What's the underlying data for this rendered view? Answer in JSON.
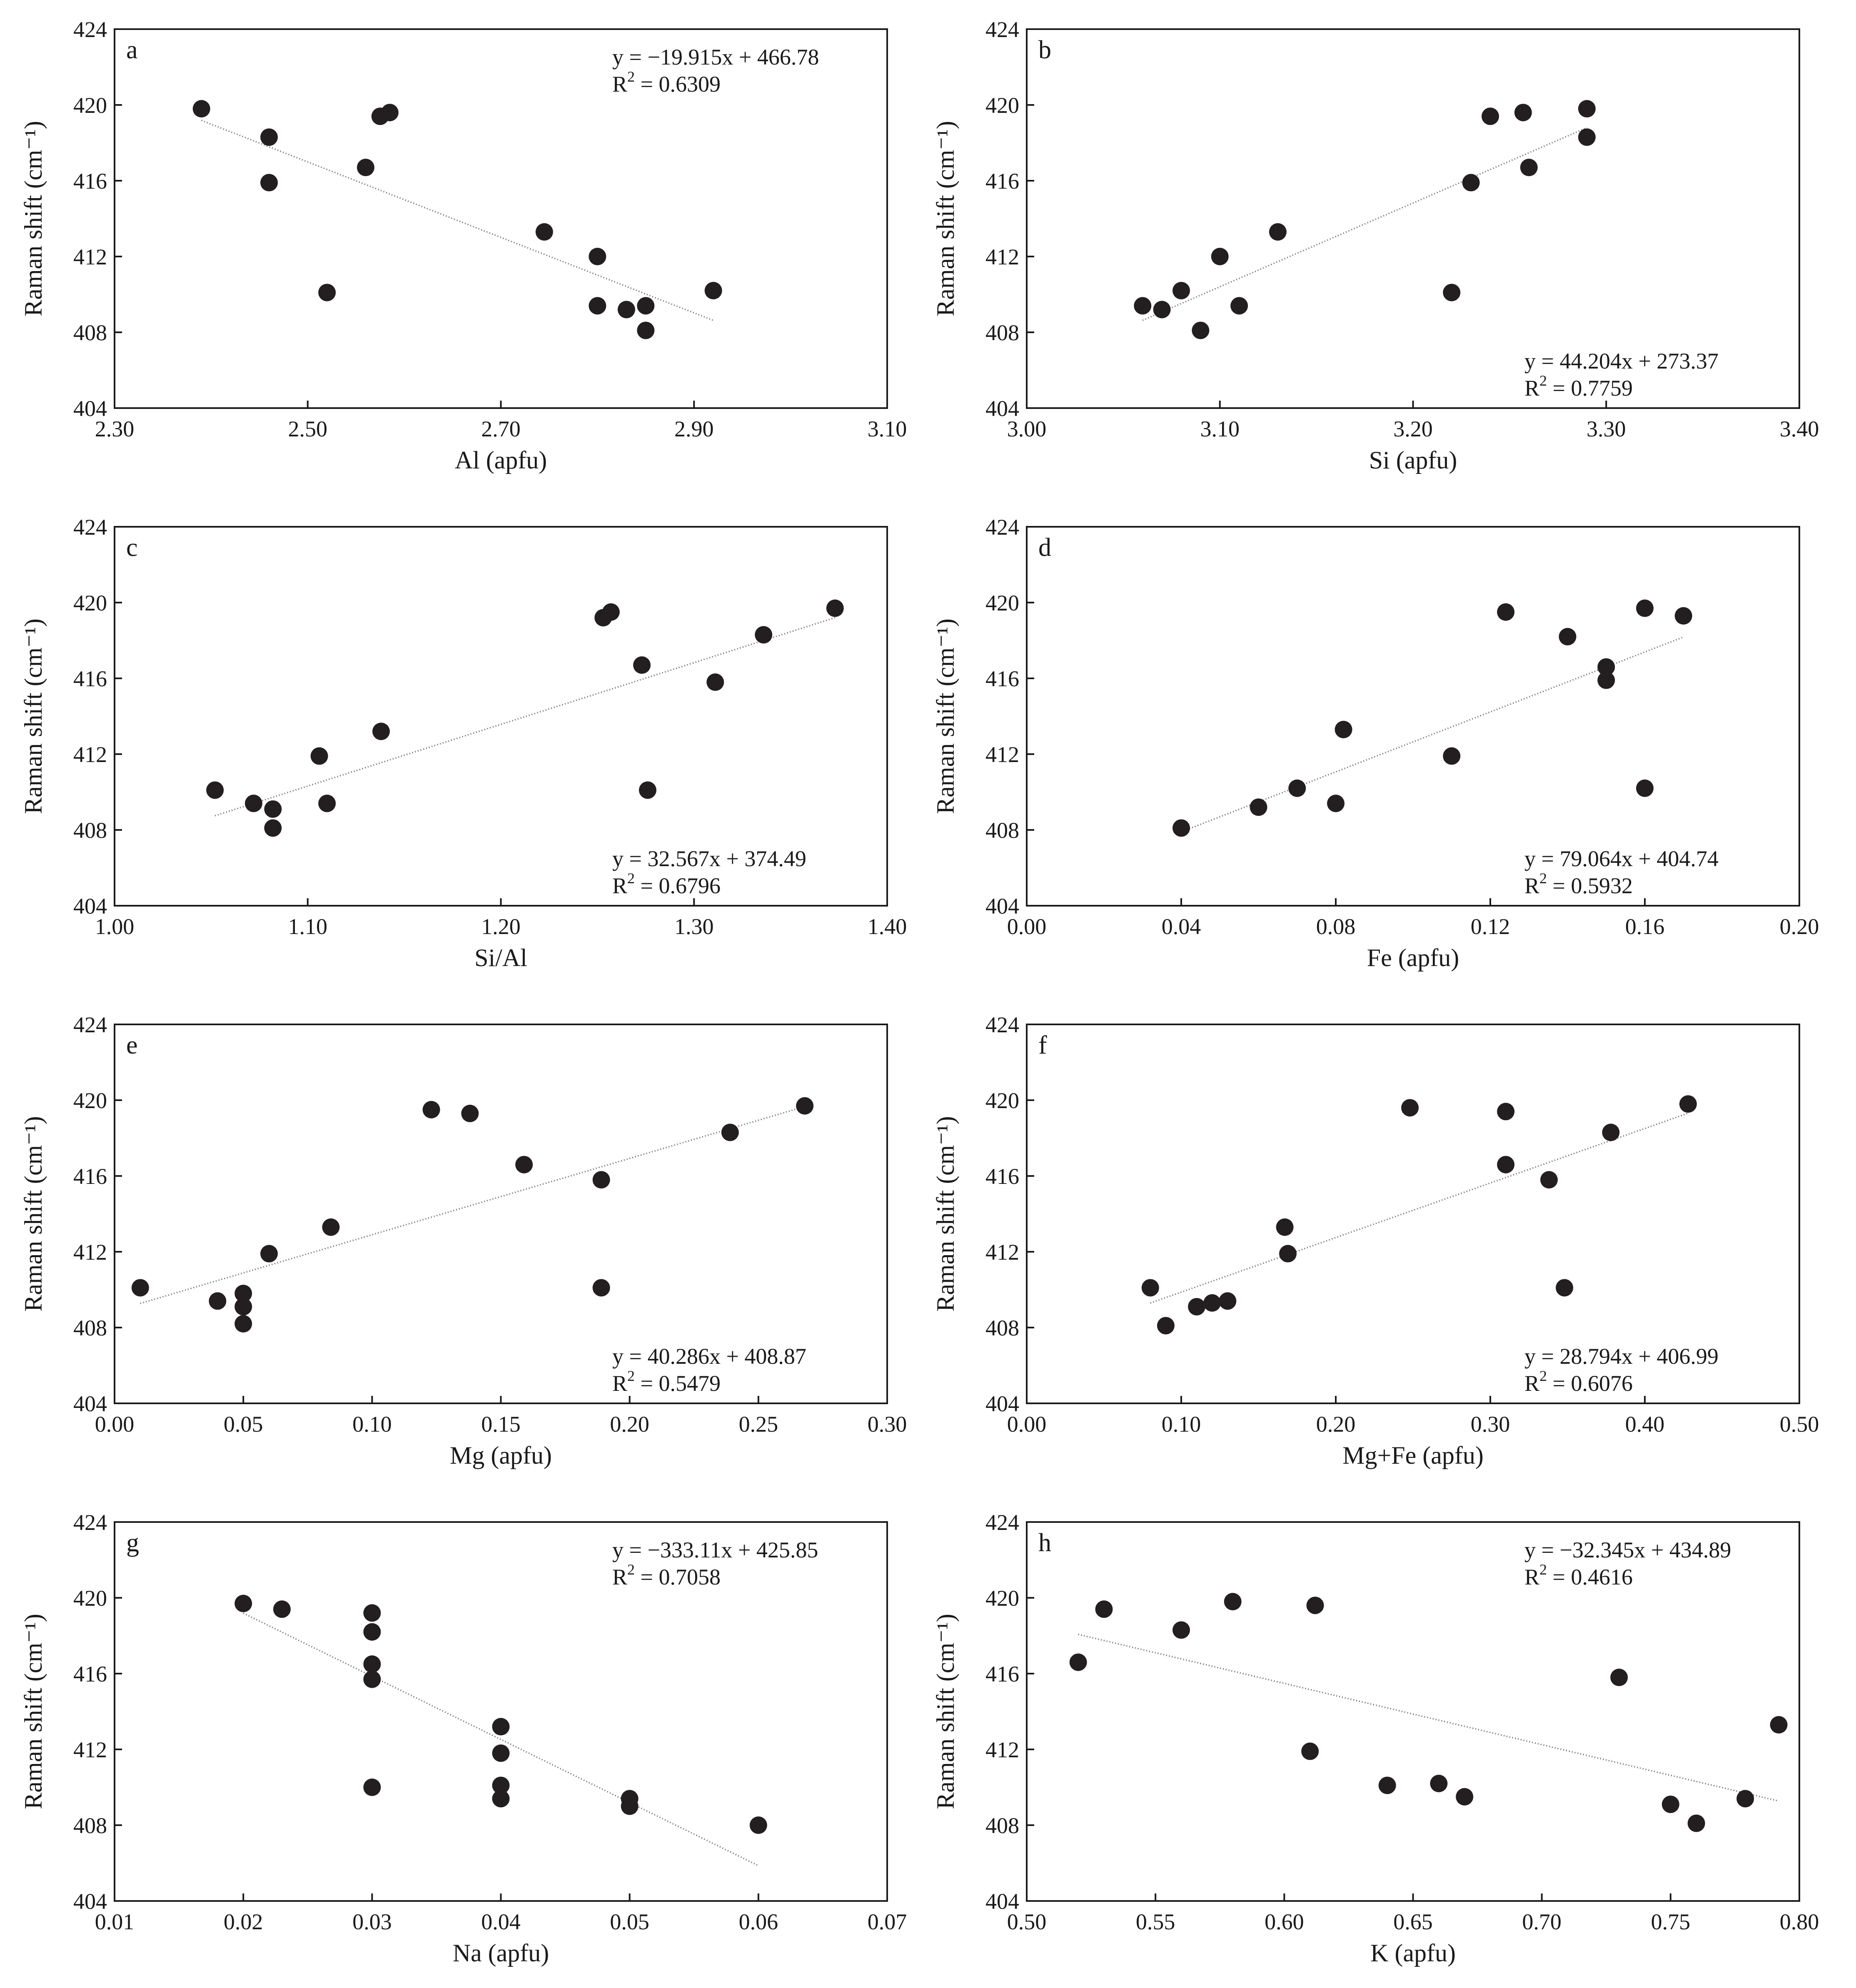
{
  "colors": {
    "points": "#231f20",
    "frame": "#1a1a1a",
    "fit_line": "#6a6a6a",
    "background": "#ffffff"
  },
  "chart_data": [
    {
      "type": "scatter",
      "panel": "a",
      "xlabel": "Al (apfu)",
      "ylabel": "Raman shift (cm⁻¹)",
      "xlim": [
        2.3,
        3.1
      ],
      "ylim": [
        404,
        424
      ],
      "xticks": [
        "2.30",
        "2.50",
        "2.70",
        "2.90",
        "3.10"
      ],
      "yticks": [
        "404",
        "408",
        "412",
        "416",
        "420",
        "424"
      ],
      "points": [
        [
          2.39,
          419.8
        ],
        [
          2.46,
          418.3
        ],
        [
          2.46,
          415.9
        ],
        [
          2.52,
          410.1
        ],
        [
          2.56,
          416.7
        ],
        [
          2.575,
          419.4
        ],
        [
          2.585,
          419.6
        ],
        [
          2.745,
          413.3
        ],
        [
          2.8,
          412.0
        ],
        [
          2.8,
          409.4
        ],
        [
          2.83,
          409.2
        ],
        [
          2.85,
          409.4
        ],
        [
          2.85,
          408.1
        ],
        [
          2.92,
          410.2
        ]
      ],
      "fit": {
        "slope": -19.915,
        "intercept": 466.78,
        "x_range": [
          2.39,
          2.92
        ]
      },
      "equation": "y = −19.915x + 466.78",
      "r2_label": "R",
      "r2_sup": "2",
      "r2_value": " = 0.6309",
      "equation_position": "top-right"
    },
    {
      "type": "scatter",
      "panel": "b",
      "xlabel": "Si (apfu)",
      "ylabel": "Raman shift (cm⁻¹)",
      "xlim": [
        3.0,
        3.4
      ],
      "ylim": [
        404,
        424
      ],
      "xticks": [
        "3.00",
        "3.10",
        "3.20",
        "3.30",
        "3.40"
      ],
      "yticks": [
        "404",
        "408",
        "412",
        "416",
        "420",
        "424"
      ],
      "points": [
        [
          3.06,
          409.4
        ],
        [
          3.07,
          409.2
        ],
        [
          3.08,
          410.2
        ],
        [
          3.09,
          408.1
        ],
        [
          3.1,
          412.0
        ],
        [
          3.11,
          409.4
        ],
        [
          3.13,
          413.3
        ],
        [
          3.22,
          410.1
        ],
        [
          3.23,
          415.9
        ],
        [
          3.24,
          419.4
        ],
        [
          3.257,
          419.6
        ],
        [
          3.26,
          416.7
        ],
        [
          3.29,
          419.8
        ],
        [
          3.29,
          418.3
        ]
      ],
      "fit": {
        "slope": 44.204,
        "intercept": 273.37,
        "x_range": [
          3.06,
          3.29
        ]
      },
      "equation": "y = 44.204x + 273.37",
      "r2_label": "R",
      "r2_sup": "2",
      "r2_value": " = 0.7759",
      "equation_position": "bottom-right"
    },
    {
      "type": "scatter",
      "panel": "c",
      "xlabel": "Si/Al",
      "ylabel": "Raman shift (cm⁻¹)",
      "xlim": [
        1.0,
        1.4
      ],
      "ylim": [
        404,
        424
      ],
      "xticks": [
        "1.00",
        "1.10",
        "1.20",
        "1.30",
        "1.40"
      ],
      "yticks": [
        "404",
        "408",
        "412",
        "416",
        "420",
        "424"
      ],
      "points": [
        [
          1.052,
          410.1
        ],
        [
          1.072,
          409.4
        ],
        [
          1.082,
          409.1
        ],
        [
          1.082,
          408.1
        ],
        [
          1.106,
          411.9
        ],
        [
          1.11,
          409.4
        ],
        [
          1.138,
          413.2
        ],
        [
          1.253,
          419.2
        ],
        [
          1.257,
          419.5
        ],
        [
          1.273,
          416.7
        ],
        [
          1.276,
          410.1
        ],
        [
          1.311,
          415.8
        ],
        [
          1.336,
          418.3
        ],
        [
          1.373,
          419.7
        ]
      ],
      "fit": {
        "slope": 32.567,
        "intercept": 374.49,
        "x_range": [
          1.052,
          1.373
        ]
      },
      "equation": "y = 32.567x + 374.49",
      "r2_label": "R",
      "r2_sup": "2",
      "r2_value": " = 0.6796",
      "equation_position": "bottom-right"
    },
    {
      "type": "scatter",
      "panel": "d",
      "xlabel": "Fe (apfu)",
      "ylabel": "Raman shift (cm⁻¹)",
      "xlim": [
        0.0,
        0.2
      ],
      "ylim": [
        404,
        424
      ],
      "xticks": [
        "0.00",
        "0.04",
        "0.08",
        "0.12",
        "0.16",
        "0.20"
      ],
      "yticks": [
        "404",
        "408",
        "412",
        "416",
        "420",
        "424"
      ],
      "points": [
        [
          0.04,
          408.1
        ],
        [
          0.06,
          409.2
        ],
        [
          0.07,
          410.2
        ],
        [
          0.08,
          409.4
        ],
        [
          0.082,
          413.3
        ],
        [
          0.11,
          411.9
        ],
        [
          0.124,
          419.5
        ],
        [
          0.14,
          418.2
        ],
        [
          0.15,
          416.6
        ],
        [
          0.15,
          415.9
        ],
        [
          0.16,
          419.7
        ],
        [
          0.16,
          410.2
        ],
        [
          0.17,
          419.3
        ]
      ],
      "fit": {
        "slope": 79.064,
        "intercept": 404.74,
        "x_range": [
          0.04,
          0.17
        ]
      },
      "equation": "y = 79.064x + 404.74",
      "r2_label": "R",
      "r2_sup": "2",
      "r2_value": " = 0.5932",
      "equation_position": "bottom-right"
    },
    {
      "type": "scatter",
      "panel": "e",
      "xlabel": "Mg (apfu)",
      "ylabel": "Raman shift (cm⁻¹)",
      "xlim": [
        0.0,
        0.3
      ],
      "ylim": [
        404,
        424
      ],
      "xticks": [
        "0.00",
        "0.05",
        "0.10",
        "0.15",
        "0.20",
        "0.25",
        "0.30"
      ],
      "yticks": [
        "404",
        "408",
        "412",
        "416",
        "420",
        "424"
      ],
      "points": [
        [
          0.01,
          410.1
        ],
        [
          0.04,
          409.4
        ],
        [
          0.05,
          409.8
        ],
        [
          0.05,
          409.1
        ],
        [
          0.05,
          408.2
        ],
        [
          0.06,
          411.9
        ],
        [
          0.084,
          413.3
        ],
        [
          0.123,
          419.5
        ],
        [
          0.138,
          419.3
        ],
        [
          0.159,
          416.6
        ],
        [
          0.189,
          415.8
        ],
        [
          0.189,
          410.1
        ],
        [
          0.239,
          418.3
        ],
        [
          0.268,
          419.7
        ]
      ],
      "fit": {
        "slope": 40.286,
        "intercept": 408.87,
        "x_range": [
          0.01,
          0.268
        ]
      },
      "equation": "y = 40.286x + 408.87",
      "r2_label": "R",
      "r2_sup": "2",
      "r2_value": " = 0.5479",
      "equation_position": "bottom-right"
    },
    {
      "type": "scatter",
      "panel": "f",
      "xlabel": "Mg+Fe (apfu)",
      "ylabel": "Raman shift (cm⁻¹)",
      "xlim": [
        0.0,
        0.5
      ],
      "ylim": [
        404,
        424
      ],
      "xticks": [
        "0.00",
        "0.10",
        "0.20",
        "0.30",
        "0.40",
        "0.50"
      ],
      "yticks": [
        "404",
        "408",
        "412",
        "416",
        "420",
        "424"
      ],
      "points": [
        [
          0.08,
          410.1
        ],
        [
          0.09,
          408.1
        ],
        [
          0.11,
          409.1
        ],
        [
          0.12,
          409.3
        ],
        [
          0.13,
          409.4
        ],
        [
          0.167,
          413.3
        ],
        [
          0.169,
          411.9
        ],
        [
          0.248,
          419.6
        ],
        [
          0.31,
          419.4
        ],
        [
          0.31,
          416.6
        ],
        [
          0.338,
          415.8
        ],
        [
          0.348,
          410.1
        ],
        [
          0.378,
          418.3
        ],
        [
          0.428,
          419.8
        ]
      ],
      "fit": {
        "slope": 28.794,
        "intercept": 406.99,
        "x_range": [
          0.08,
          0.428
        ]
      },
      "equation": "y = 28.794x + 406.99",
      "r2_label": "R",
      "r2_sup": "2",
      "r2_value": " = 0.6076",
      "equation_position": "bottom-right"
    },
    {
      "type": "scatter",
      "panel": "g",
      "xlabel": "Na (apfu)",
      "ylabel": "Raman shift (cm⁻¹)",
      "xlim": [
        0.01,
        0.07
      ],
      "ylim": [
        404,
        424
      ],
      "xticks": [
        "0.01",
        "0.02",
        "0.03",
        "0.04",
        "0.05",
        "0.06",
        "0.07"
      ],
      "yticks": [
        "404",
        "408",
        "412",
        "416",
        "420",
        "424"
      ],
      "points": [
        [
          0.02,
          419.7
        ],
        [
          0.023,
          419.4
        ],
        [
          0.03,
          419.2
        ],
        [
          0.03,
          418.2
        ],
        [
          0.03,
          416.5
        ],
        [
          0.03,
          415.7
        ],
        [
          0.03,
          410.0
        ],
        [
          0.04,
          413.2
        ],
        [
          0.04,
          411.8
        ],
        [
          0.04,
          410.1
        ],
        [
          0.04,
          409.4
        ],
        [
          0.05,
          409.4
        ],
        [
          0.05,
          409.0
        ],
        [
          0.06,
          408.0
        ]
      ],
      "fit": {
        "slope": -333.11,
        "intercept": 425.85,
        "x_range": [
          0.02,
          0.06
        ]
      },
      "equation": "y = −333.11x + 425.85",
      "r2_label": "R",
      "r2_sup": "2",
      "r2_value": " = 0.7058",
      "equation_position": "top-right"
    },
    {
      "type": "scatter",
      "panel": "h",
      "xlabel": "K (apfu)",
      "ylabel": "Raman shift (cm⁻¹)",
      "xlim": [
        0.5,
        0.8
      ],
      "ylim": [
        404,
        424
      ],
      "xticks": [
        "0.50",
        "0.55",
        "0.60",
        "0.65",
        "0.70",
        "0.75",
        "0.80"
      ],
      "yticks": [
        "404",
        "408",
        "412",
        "416",
        "420",
        "424"
      ],
      "points": [
        [
          0.52,
          416.6
        ],
        [
          0.53,
          419.4
        ],
        [
          0.56,
          418.3
        ],
        [
          0.58,
          419.8
        ],
        [
          0.61,
          411.9
        ],
        [
          0.612,
          419.6
        ],
        [
          0.64,
          410.1
        ],
        [
          0.66,
          410.2
        ],
        [
          0.67,
          409.5
        ],
        [
          0.73,
          415.8
        ],
        [
          0.75,
          409.1
        ],
        [
          0.76,
          408.1
        ],
        [
          0.779,
          409.4
        ],
        [
          0.792,
          413.3
        ]
      ],
      "fit": {
        "slope": -32.345,
        "intercept": 434.89,
        "x_range": [
          0.52,
          0.792
        ]
      },
      "equation": "y = −32.345x + 434.89",
      "r2_label": "R",
      "r2_sup": "2",
      "r2_value": " = 0.4616",
      "equation_position": "top-right"
    }
  ]
}
